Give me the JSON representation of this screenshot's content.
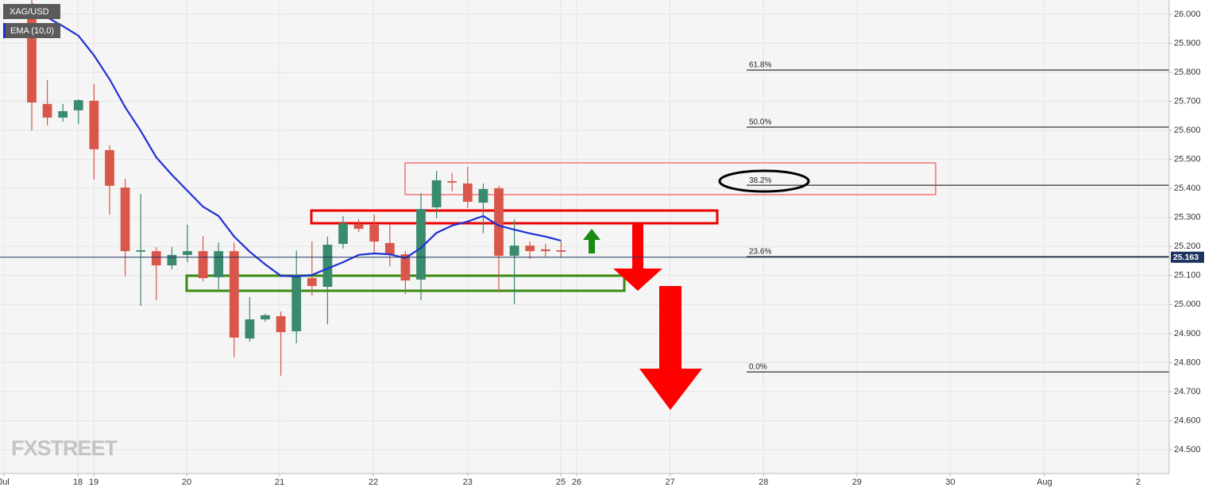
{
  "chart_data": {
    "type": "candlestick",
    "x": [
      0,
      1,
      2,
      3,
      4,
      5,
      6,
      7,
      8,
      9,
      10,
      11,
      12,
      13,
      14,
      15,
      16,
      17,
      18,
      19,
      20,
      21,
      22,
      23,
      24,
      25,
      26,
      27,
      28,
      29,
      30,
      31,
      32,
      33,
      34
    ],
    "xlim": [
      -2.04,
      73.06
    ],
    "xticks": [
      {
        "value": -1.8,
        "label": "Jul"
      },
      {
        "value": 2.96,
        "label": "18"
      },
      {
        "value": 3.98,
        "label": "19"
      },
      {
        "value": 9.95,
        "label": "20"
      },
      {
        "value": 15.92,
        "label": "21"
      },
      {
        "value": 21.94,
        "label": "22"
      },
      {
        "value": 28.0,
        "label": "23"
      },
      {
        "value": 33.98,
        "label": "25"
      },
      {
        "value": 35.0,
        "label": "26"
      },
      {
        "value": 41.0,
        "label": "27"
      },
      {
        "value": 47.0,
        "label": "28"
      },
      {
        "value": 53.0,
        "label": "29"
      },
      {
        "value": 59.0,
        "label": "30"
      },
      {
        "value": 65.05,
        "label": "Aug"
      },
      {
        "value": 71.07,
        "label": "2"
      }
    ],
    "ylim": [
      24.418,
      26.049
    ],
    "yticks": [
      {
        "value": 24.5,
        "label": "24.500"
      },
      {
        "value": 24.6,
        "label": "24.600"
      },
      {
        "value": 24.7,
        "label": "24.700"
      },
      {
        "value": 24.8,
        "label": "24.800"
      },
      {
        "value": 24.9,
        "label": "24.900"
      },
      {
        "value": 25.0,
        "label": "25.000"
      },
      {
        "value": 25.1,
        "label": "25.100"
      },
      {
        "value": 25.2,
        "label": "25.200"
      },
      {
        "value": 25.3,
        "label": "25.300"
      },
      {
        "value": 25.4,
        "label": "25.400"
      },
      {
        "value": 25.5,
        "label": "25.500"
      },
      {
        "value": 25.6,
        "label": "25.600"
      },
      {
        "value": 25.7,
        "label": "25.700"
      },
      {
        "value": 25.8,
        "label": "25.800"
      },
      {
        "value": 25.9,
        "label": "25.900"
      },
      {
        "value": 26.0,
        "label": "26.000"
      }
    ],
    "grid": true,
    "series": [
      {
        "name": "XAG/USD",
        "up_color": "#3a8a6e",
        "down_color": "#d9574a",
        "open": [
          26.03,
          25.691,
          25.644,
          25.669,
          25.702,
          25.532,
          25.403,
          25.182,
          25.184,
          25.135,
          25.171,
          25.184,
          25.094,
          25.184,
          24.883,
          24.949,
          24.96,
          24.908,
          25.091,
          25.061,
          25.209,
          25.277,
          25.275,
          25.212,
          25.173,
          25.086,
          25.335,
          25.425,
          25.417,
          25.351,
          25.401,
          25.168,
          25.203,
          25.19,
          25.187
        ],
        "high": [
          26.049,
          25.773,
          25.691,
          25.707,
          25.759,
          25.548,
          25.433,
          25.381,
          25.198,
          25.198,
          25.275,
          25.236,
          25.214,
          25.214,
          25.026,
          24.968,
          24.976,
          25.187,
          25.217,
          25.234,
          25.305,
          25.294,
          25.31,
          25.277,
          25.184,
          25.384,
          25.461,
          25.453,
          25.474,
          25.417,
          25.409,
          25.294,
          25.217,
          25.209,
          25.217
        ],
        "low": [
          25.6,
          25.617,
          25.63,
          25.622,
          25.431,
          25.31,
          25.097,
          24.995,
          25.015,
          25.121,
          25.146,
          25.08,
          25.053,
          24.818,
          24.872,
          24.941,
          24.755,
          24.867,
          25.031,
          24.932,
          25.193,
          25.25,
          25.179,
          25.132,
          25.036,
          25.015,
          25.297,
          25.39,
          25.332,
          25.245,
          25.042,
          25.001,
          25.157,
          25.165,
          25.162
        ],
        "close": [
          25.696,
          25.644,
          25.666,
          25.704,
          25.535,
          25.409,
          25.184,
          25.187,
          25.135,
          25.171,
          25.184,
          25.091,
          25.184,
          24.886,
          24.949,
          24.963,
          24.905,
          25.102,
          25.064,
          25.206,
          25.28,
          25.261,
          25.217,
          25.173,
          25.083,
          25.329,
          25.428,
          25.42,
          25.354,
          25.398,
          25.168,
          25.203,
          25.184,
          25.184,
          25.182
        ]
      },
      {
        "name": "EMA (10,0)",
        "color": "#1f2fd6",
        "values": [
          26.036,
          25.989,
          25.959,
          25.926,
          25.858,
          25.776,
          25.68,
          25.598,
          25.507,
          25.447,
          25.392,
          25.337,
          25.305,
          25.234,
          25.182,
          25.138,
          25.099,
          25.097,
          25.102,
          25.124,
          25.146,
          25.171,
          25.176,
          25.173,
          25.16,
          25.195,
          25.247,
          25.272,
          25.286,
          25.305,
          25.272,
          25.258,
          25.245,
          25.234,
          25.22
        ]
      }
    ],
    "last_price": 25.163,
    "price_line_color": "#1d3461",
    "fib_levels": [
      {
        "label": "61.8%",
        "value": 25.808
      },
      {
        "label": "50.0%",
        "value": 25.611
      },
      {
        "label": "38.2%",
        "value": 25.411
      },
      {
        "label": "23.6%",
        "value": 25.165
      },
      {
        "label": "0.0%",
        "value": 24.768
      }
    ],
    "watermark": "FXSTREET"
  }
}
